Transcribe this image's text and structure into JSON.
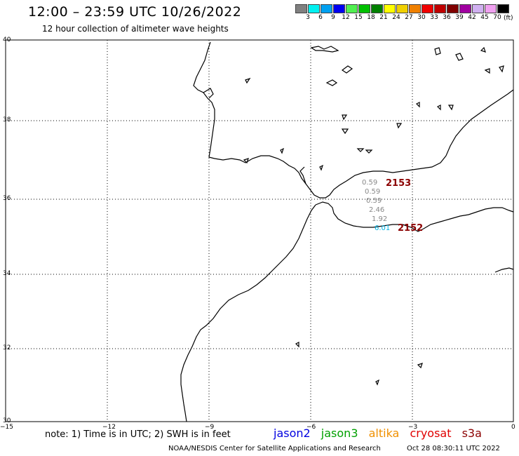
{
  "header": {
    "title": "12:00 – 23:59 UTC 10/26/2022",
    "subtitle": "12 hour collection of altimeter wave heights"
  },
  "color_scale": {
    "colors": [
      "#808080",
      "#00f0f0",
      "#00a0f0",
      "#0000f0",
      "#50f050",
      "#00c000",
      "#008000",
      "#ffff00",
      "#f0d000",
      "#f08000",
      "#f00000",
      "#c00000",
      "#800000",
      "#a000a0",
      "#d0b0f0",
      "#f0a0f0",
      "#000000"
    ],
    "labels": [
      "3",
      "6",
      "9",
      "12",
      "15",
      "18",
      "21",
      "24",
      "27",
      "30",
      "33",
      "36",
      "39",
      "42",
      "45",
      "70"
    ],
    "unit": "(ft)"
  },
  "axes": {
    "lat_labels": [
      "40",
      "38",
      "36",
      "34",
      "32",
      "30"
    ],
    "lon_labels": [
      "−15",
      "−12",
      "−9",
      "−6",
      "−3",
      "0"
    ]
  },
  "swh_values": [
    "0.59",
    "0.59",
    "0.59",
    "2.46",
    "1.92",
    "6.01"
  ],
  "track_times": [
    "2153",
    "2152"
  ],
  "footer": {
    "note": "note: 1) Time is in UTC; 2) SWH is in feet",
    "satellites": [
      {
        "name": "jason2",
        "color": "#0000e0"
      },
      {
        "name": "jason3",
        "color": "#00a000"
      },
      {
        "name": "altika",
        "color": "#f09000"
      },
      {
        "name": "cryosat",
        "color": "#e00000"
      },
      {
        "name": "s3a",
        "color": "#8b0000"
      }
    ],
    "credit": "NOAA/NESDIS Center for Satellite Applications and Research",
    "timestamp": "Oct 28 08:30:11 UTC 2022"
  }
}
